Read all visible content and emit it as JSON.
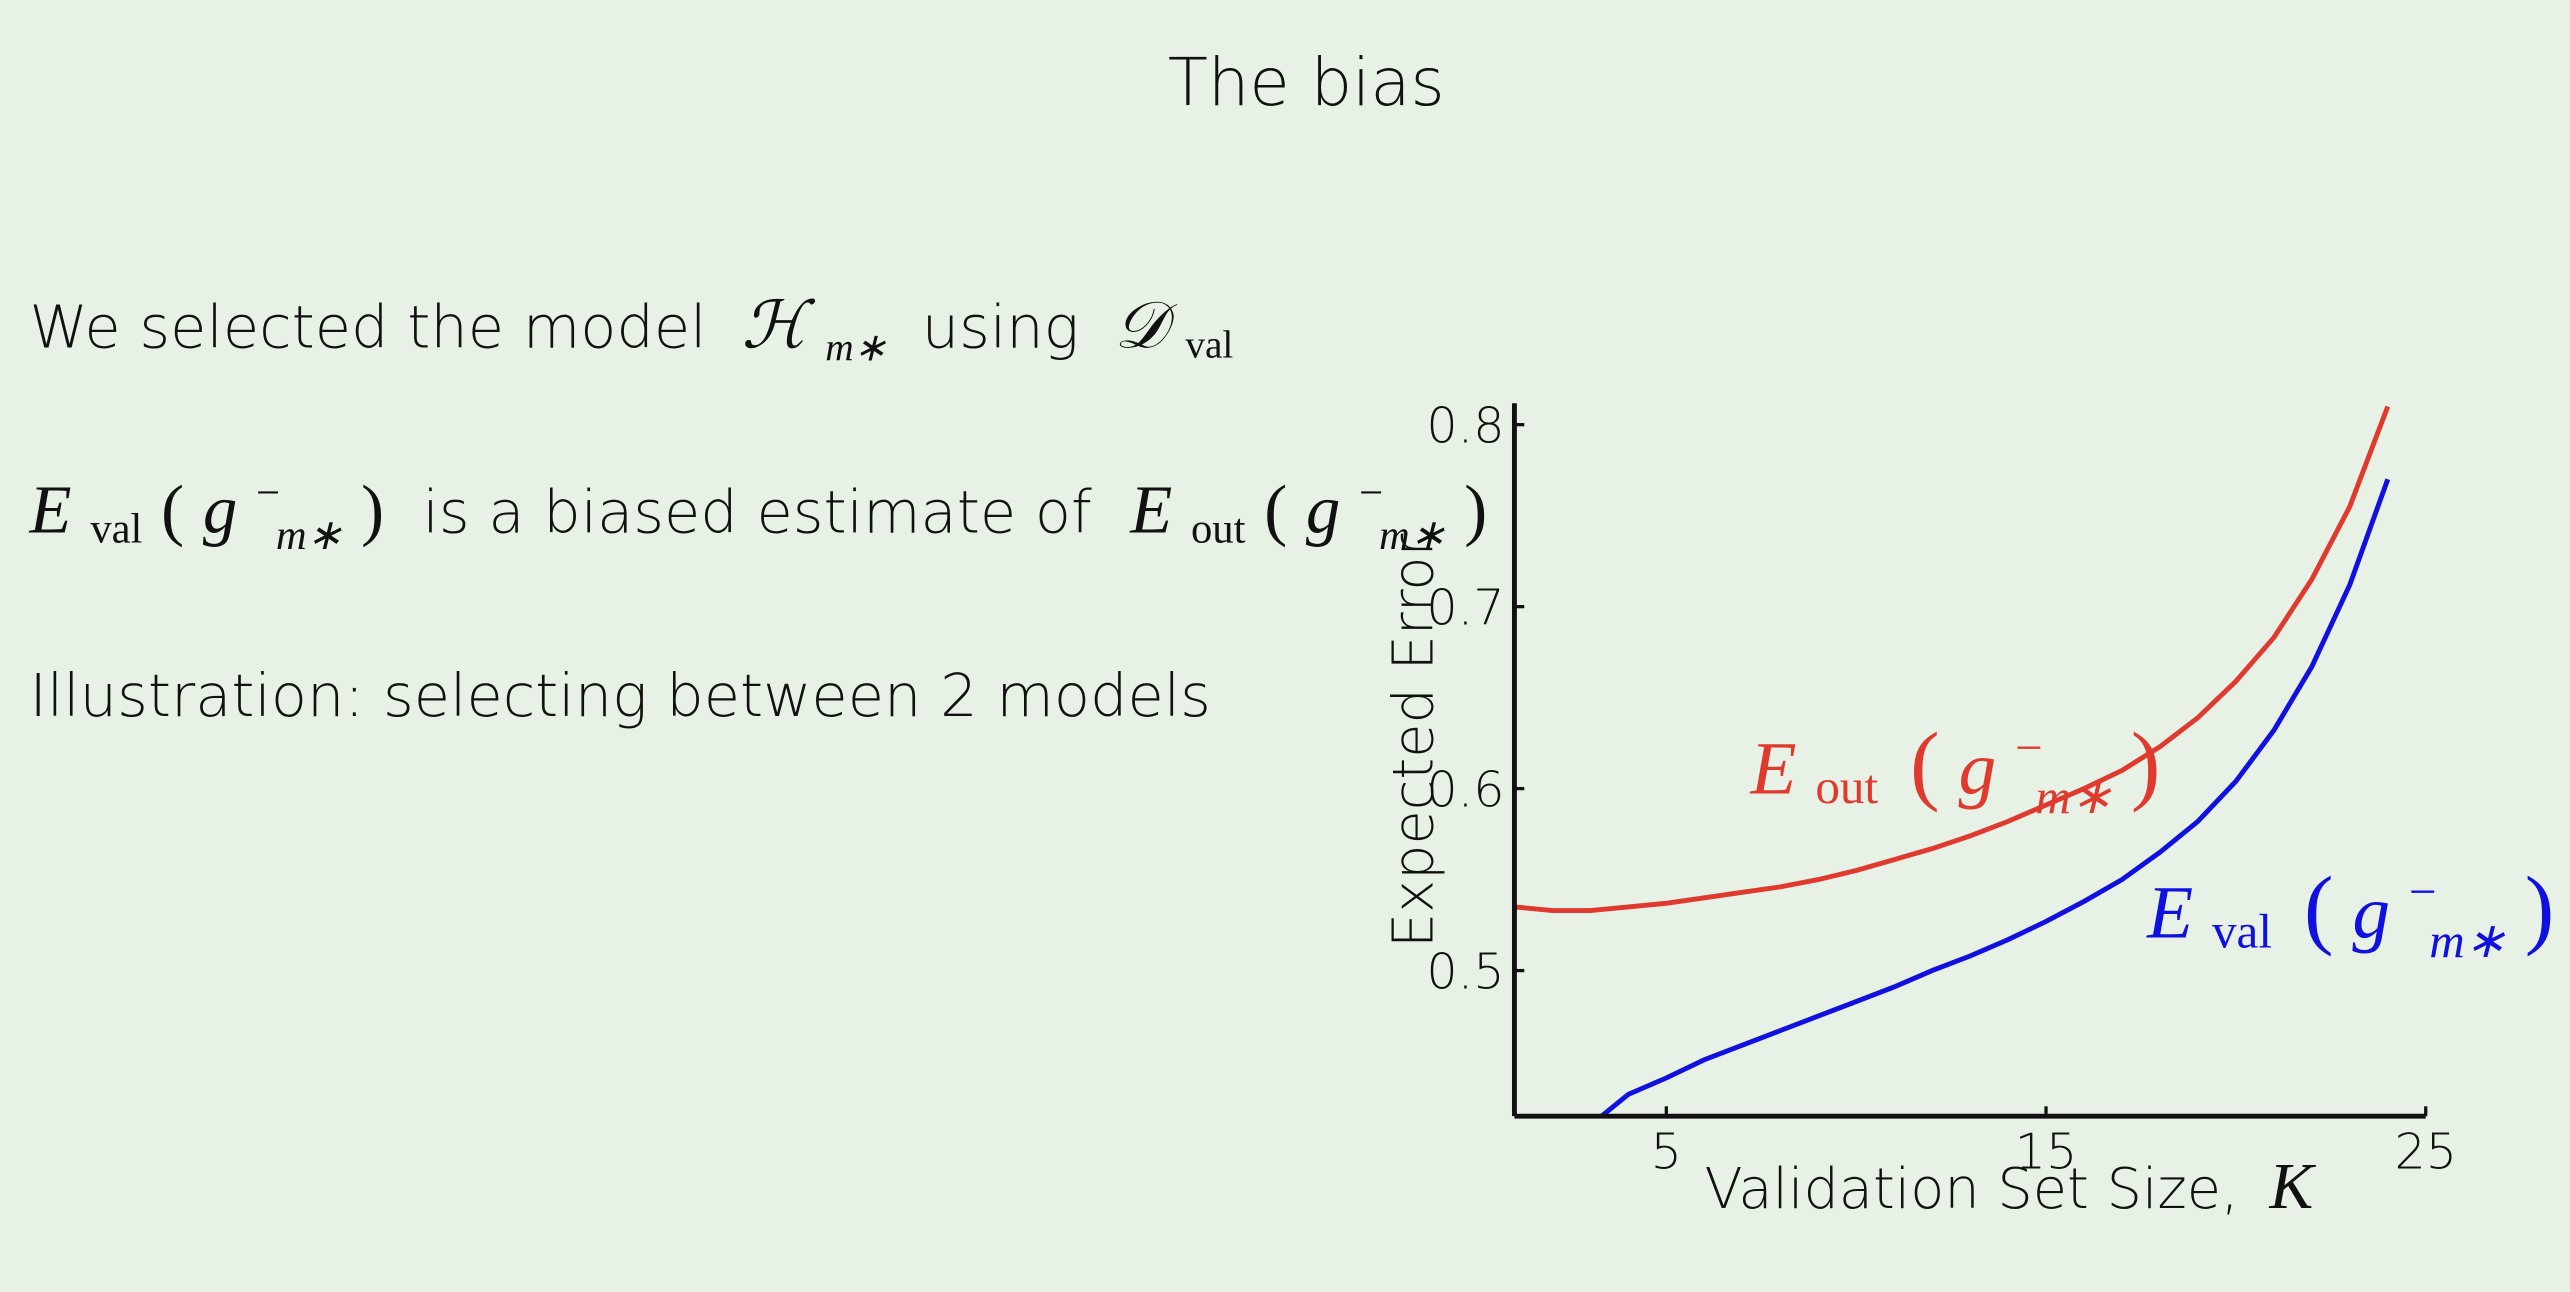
{
  "title": "The bias",
  "line1": [
    "We selected the model",
    "ℋ",
    "m∗",
    "using",
    "𝒟",
    "val"
  ],
  "line2": [
    "E",
    "val",
    "(",
    "g",
    "−",
    "m∗",
    ")",
    "is a biased estimate of",
    "E",
    "out",
    "(",
    "g",
    "−",
    "m∗",
    ")"
  ],
  "line3": "Illustration: selecting between 2 models",
  "chart_data": {
    "type": "line",
    "x_label": [
      "Validation Set Size,",
      "K"
    ],
    "y_label": "Expected Error",
    "x": [
      1,
      2,
      3,
      4,
      5,
      6,
      7,
      8,
      9,
      10,
      11,
      12,
      13,
      14,
      15,
      16,
      17,
      18,
      19,
      20,
      21,
      22,
      23,
      24
    ],
    "xlim": [
      1,
      25
    ],
    "xticks": [
      5,
      15,
      25
    ],
    "ylim": [
      0.42,
      0.81
    ],
    "yticks": [
      0.5,
      0.6,
      0.7,
      0.8
    ],
    "series": [
      {
        "label": [
          "E",
          "out",
          "(",
          "g",
          "−",
          "m∗",
          ")"
        ],
        "color": "#e03a2e",
        "values": [
          0.535,
          0.533,
          0.533,
          0.535,
          0.537,
          0.54,
          0.543,
          0.546,
          0.55,
          0.555,
          0.561,
          0.567,
          0.574,
          0.582,
          0.591,
          0.6,
          0.61,
          0.623,
          0.639,
          0.659,
          0.683,
          0.715,
          0.755,
          0.81
        ]
      },
      {
        "label": [
          "E",
          "val",
          "(",
          "g",
          "−",
          "m∗",
          ")"
        ],
        "color": "#1010e0",
        "values": [
          null,
          null,
          0.415,
          0.432,
          0.441,
          0.451,
          0.459,
          0.467,
          0.475,
          0.483,
          0.491,
          0.5,
          0.508,
          0.517,
          0.527,
          0.538,
          0.55,
          0.565,
          0.582,
          0.604,
          0.632,
          0.667,
          0.712,
          0.77
        ]
      }
    ]
  }
}
